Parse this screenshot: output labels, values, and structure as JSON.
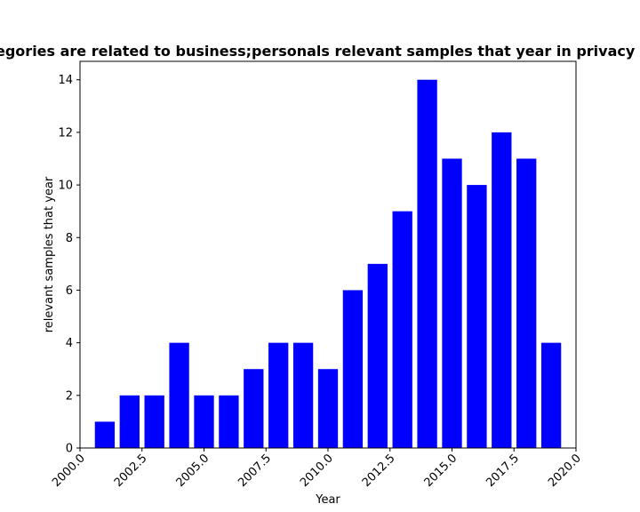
{
  "chart_data": {
    "type": "bar",
    "title": "Categories are related to business;personals relevant samples that year in privacy policy",
    "xlabel": "Year",
    "ylabel": "relevant samples that year",
    "x": [
      2001,
      2002,
      2003,
      2004,
      2005,
      2006,
      2007,
      2008,
      2009,
      2010,
      2011,
      2012,
      2013,
      2014,
      2015,
      2016,
      2017,
      2018,
      2019
    ],
    "values": [
      1,
      2,
      2,
      4,
      2,
      2,
      3,
      4,
      4,
      3,
      6,
      7,
      9,
      14,
      11,
      10,
      12,
      11,
      4
    ],
    "xlim": [
      2000.0,
      2020.0
    ],
    "ylim": [
      0,
      14.7
    ],
    "xticks": [
      "2000.0",
      "2002.5",
      "2005.0",
      "2007.5",
      "2010.0",
      "2012.5",
      "2015.0",
      "2017.5",
      "2020.0"
    ],
    "yticks": [
      "0",
      "2",
      "4",
      "6",
      "8",
      "10",
      "12",
      "14"
    ],
    "bar_color": "#0000ff",
    "grid": false
  }
}
